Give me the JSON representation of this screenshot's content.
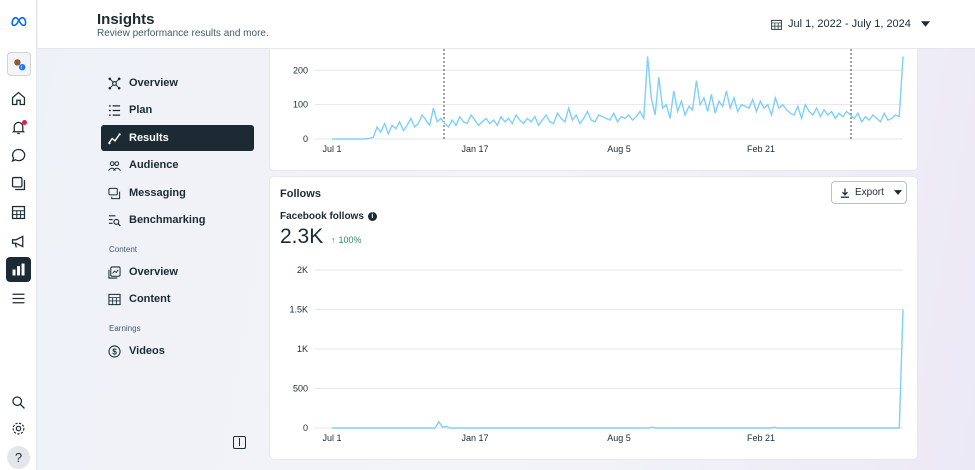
{
  "app": {
    "logo": "meta-icon"
  },
  "rail": {
    "icons": [
      "home-icon",
      "notifications-icon",
      "messages-icon",
      "content-icon",
      "planner-icon",
      "ads-icon",
      "insights-icon",
      "menu-icon",
      "search-icon",
      "settings-icon",
      "help-icon"
    ],
    "help_label": "?"
  },
  "header": {
    "title": "Insights",
    "subtitle": "Review performance results and more.",
    "date_range": "Jul 1, 2022 - July 1, 2024"
  },
  "nav": {
    "items": [
      {
        "label": "Overview",
        "icon": "overview-icon"
      },
      {
        "label": "Plan",
        "icon": "plan-icon"
      },
      {
        "label": "Results",
        "icon": "results-icon",
        "active": true
      },
      {
        "label": "Audience",
        "icon": "audience-icon"
      },
      {
        "label": "Messaging",
        "icon": "messaging-icon"
      },
      {
        "label": "Benchmarking",
        "icon": "benchmarking-icon"
      }
    ],
    "content_section": "Content",
    "content_items": [
      {
        "label": "Overview",
        "icon": "content-overview-icon"
      },
      {
        "label": "Content",
        "icon": "content-table-icon"
      }
    ],
    "earnings_section": "Earnings",
    "earnings_items": [
      {
        "label": "Videos",
        "icon": "dollar-icon"
      }
    ]
  },
  "follows": {
    "title": "Follows",
    "export_label": "Export",
    "metric_label": "Facebook follows",
    "metric_value": "2.3K",
    "metric_change": "100%"
  },
  "colors": {
    "line": "#7fd0f5",
    "accent_dark": "#1c2b33",
    "positive": "#2e8b57"
  },
  "chart_data": [
    {
      "type": "line",
      "title": "",
      "x_tick_labels": [
        "Jul 1",
        "Jan 17",
        "Aug 5",
        "Feb 21"
      ],
      "y_tick_labels": [
        "0",
        "100",
        "200"
      ],
      "ylim": [
        0,
        230
      ],
      "series": [
        {
          "values": [
            0,
            0,
            0,
            0,
            0,
            0,
            0,
            0,
            0,
            0,
            2,
            5,
            35,
            20,
            45,
            15,
            40,
            30,
            50,
            25,
            40,
            60,
            35,
            45,
            70,
            55,
            40,
            90,
            50,
            60,
            45,
            35,
            55,
            40,
            65,
            50,
            45,
            70,
            55,
            40,
            50,
            60,
            45,
            55,
            40,
            65,
            50,
            60,
            45,
            70,
            55,
            45,
            60,
            50,
            65,
            40,
            55,
            70,
            50,
            45,
            75,
            60,
            50,
            90,
            55,
            70,
            45,
            60,
            80,
            55,
            50,
            70,
            65,
            60,
            55,
            75,
            50,
            65,
            60,
            70,
            55,
            65,
            80,
            60,
            240,
            120,
            70,
            180,
            90,
            100,
            60,
            140,
            80,
            110,
            70,
            95,
            85,
            170,
            100,
            120,
            80,
            130,
            75,
            110,
            95,
            140,
            90,
            120,
            80,
            100,
            95,
            90,
            115,
            80,
            110,
            90,
            100,
            70,
            120,
            90,
            100,
            85,
            75,
            70,
            95,
            60,
            100,
            80,
            70,
            90,
            65,
            85,
            70,
            80,
            60,
            75,
            65,
            80,
            70,
            60,
            75,
            50,
            65,
            55,
            70,
            60,
            50,
            75,
            55,
            60,
            70,
            65,
            240
          ]
        }
      ]
    },
    {
      "type": "line",
      "title": "Facebook follows",
      "x_tick_labels": [
        "Jul 1",
        "Jan 17",
        "Aug 5",
        "Feb 21"
      ],
      "y_tick_labels": [
        "0",
        "500",
        "1K",
        "1.5K",
        "2K"
      ],
      "ylim": [
        0,
        2000
      ],
      "series": [
        {
          "values": [
            0,
            0,
            0,
            0,
            0,
            0,
            0,
            0,
            0,
            0,
            0,
            0,
            0,
            0,
            0,
            0,
            0,
            0,
            0,
            0,
            0,
            0,
            0,
            0,
            0,
            0,
            0,
            0,
            0,
            80,
            10,
            20,
            0,
            0,
            0,
            0,
            0,
            0,
            0,
            0,
            0,
            0,
            0,
            0,
            0,
            0,
            0,
            0,
            0,
            0,
            0,
            0,
            0,
            0,
            0,
            0,
            0,
            0,
            0,
            0,
            0,
            0,
            0,
            0,
            0,
            0,
            0,
            0,
            0,
            0,
            0,
            0,
            0,
            0,
            0,
            0,
            0,
            0,
            0,
            0,
            0,
            0,
            0,
            0,
            0,
            0,
            0,
            10,
            0,
            0,
            0,
            0,
            0,
            0,
            0,
            0,
            0,
            0,
            0,
            0,
            0,
            0,
            0,
            0,
            0,
            0,
            0,
            0,
            0,
            0,
            0,
            0,
            0,
            0,
            0,
            0,
            0,
            0,
            0,
            0,
            10,
            0,
            0,
            0,
            0,
            0,
            0,
            0,
            0,
            0,
            0,
            0,
            0,
            0,
            0,
            0,
            0,
            0,
            0,
            0,
            0,
            0,
            0,
            0,
            0,
            0,
            0,
            0,
            0,
            0,
            0,
            0,
            0,
            0,
            0,
            1500
          ]
        }
      ]
    }
  ]
}
